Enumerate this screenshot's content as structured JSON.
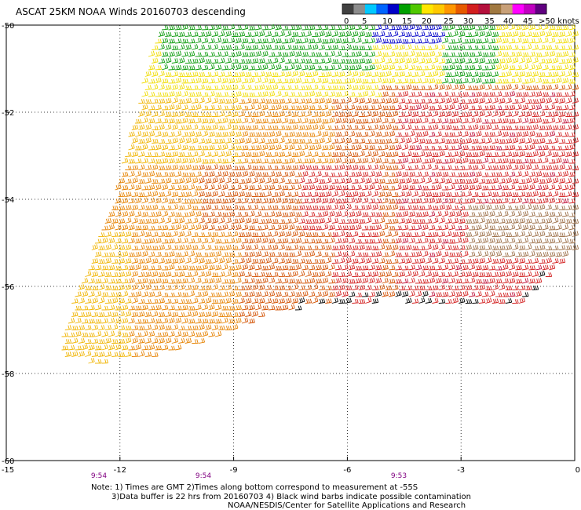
{
  "title": "ASCAT 25KM NOAA Winds 20160703 descending",
  "colorbar": {
    "labels": [
      "0",
      "5",
      "10",
      "15",
      "20",
      "25",
      "30",
      "35",
      "40",
      "45",
      ">50 knots"
    ],
    "colors": [
      "#404040",
      "#8c8c8c",
      "#00c8ff",
      "#0064ff",
      "#0000c8",
      "#00a000",
      "#50c800",
      "#ffe600",
      "#ffc800",
      "#ff9600",
      "#e65a00",
      "#d21e1e",
      "#b4103c",
      "#a07840",
      "#c8a078",
      "#ff00ff",
      "#c000c0",
      "#600080"
    ]
  },
  "axes": {
    "lat_labels": [
      "-50",
      "-52",
      "-54",
      "-56",
      "-58",
      "-60"
    ],
    "lon_labels": [
      "-15",
      "-12",
      "-9",
      "-6",
      "-3",
      "0"
    ],
    "lat_range": [
      -60,
      -50
    ],
    "lon_range": [
      -15,
      0
    ]
  },
  "times": [
    "9:54",
    "9:54",
    "9:53"
  ],
  "notes": {
    "line1": "Note: 1) Times are GMT 2)Times along bottom correspond to measurement at -55S",
    "line2": "3)Data buffer is 22 hrs from 20160703 4) Black wind barbs indicate possible contamination",
    "line3": "NOAA/NESDIS/Center for Satellite Applications and Research"
  },
  "map_colors": {
    "frame": "#000000",
    "grid": "#000000",
    "time_label": "#800080",
    "barb_palette": {
      "green": "#0a9a0a",
      "blue": "#0000c8",
      "yellow": "#f0dc00",
      "gold": "#f0b400",
      "orange": "#e68200",
      "darkorange": "#d25000",
      "red": "#d21e1e",
      "crimson": "#c0143c",
      "brown": "#9b6e46",
      "black": "#000000"
    }
  }
}
